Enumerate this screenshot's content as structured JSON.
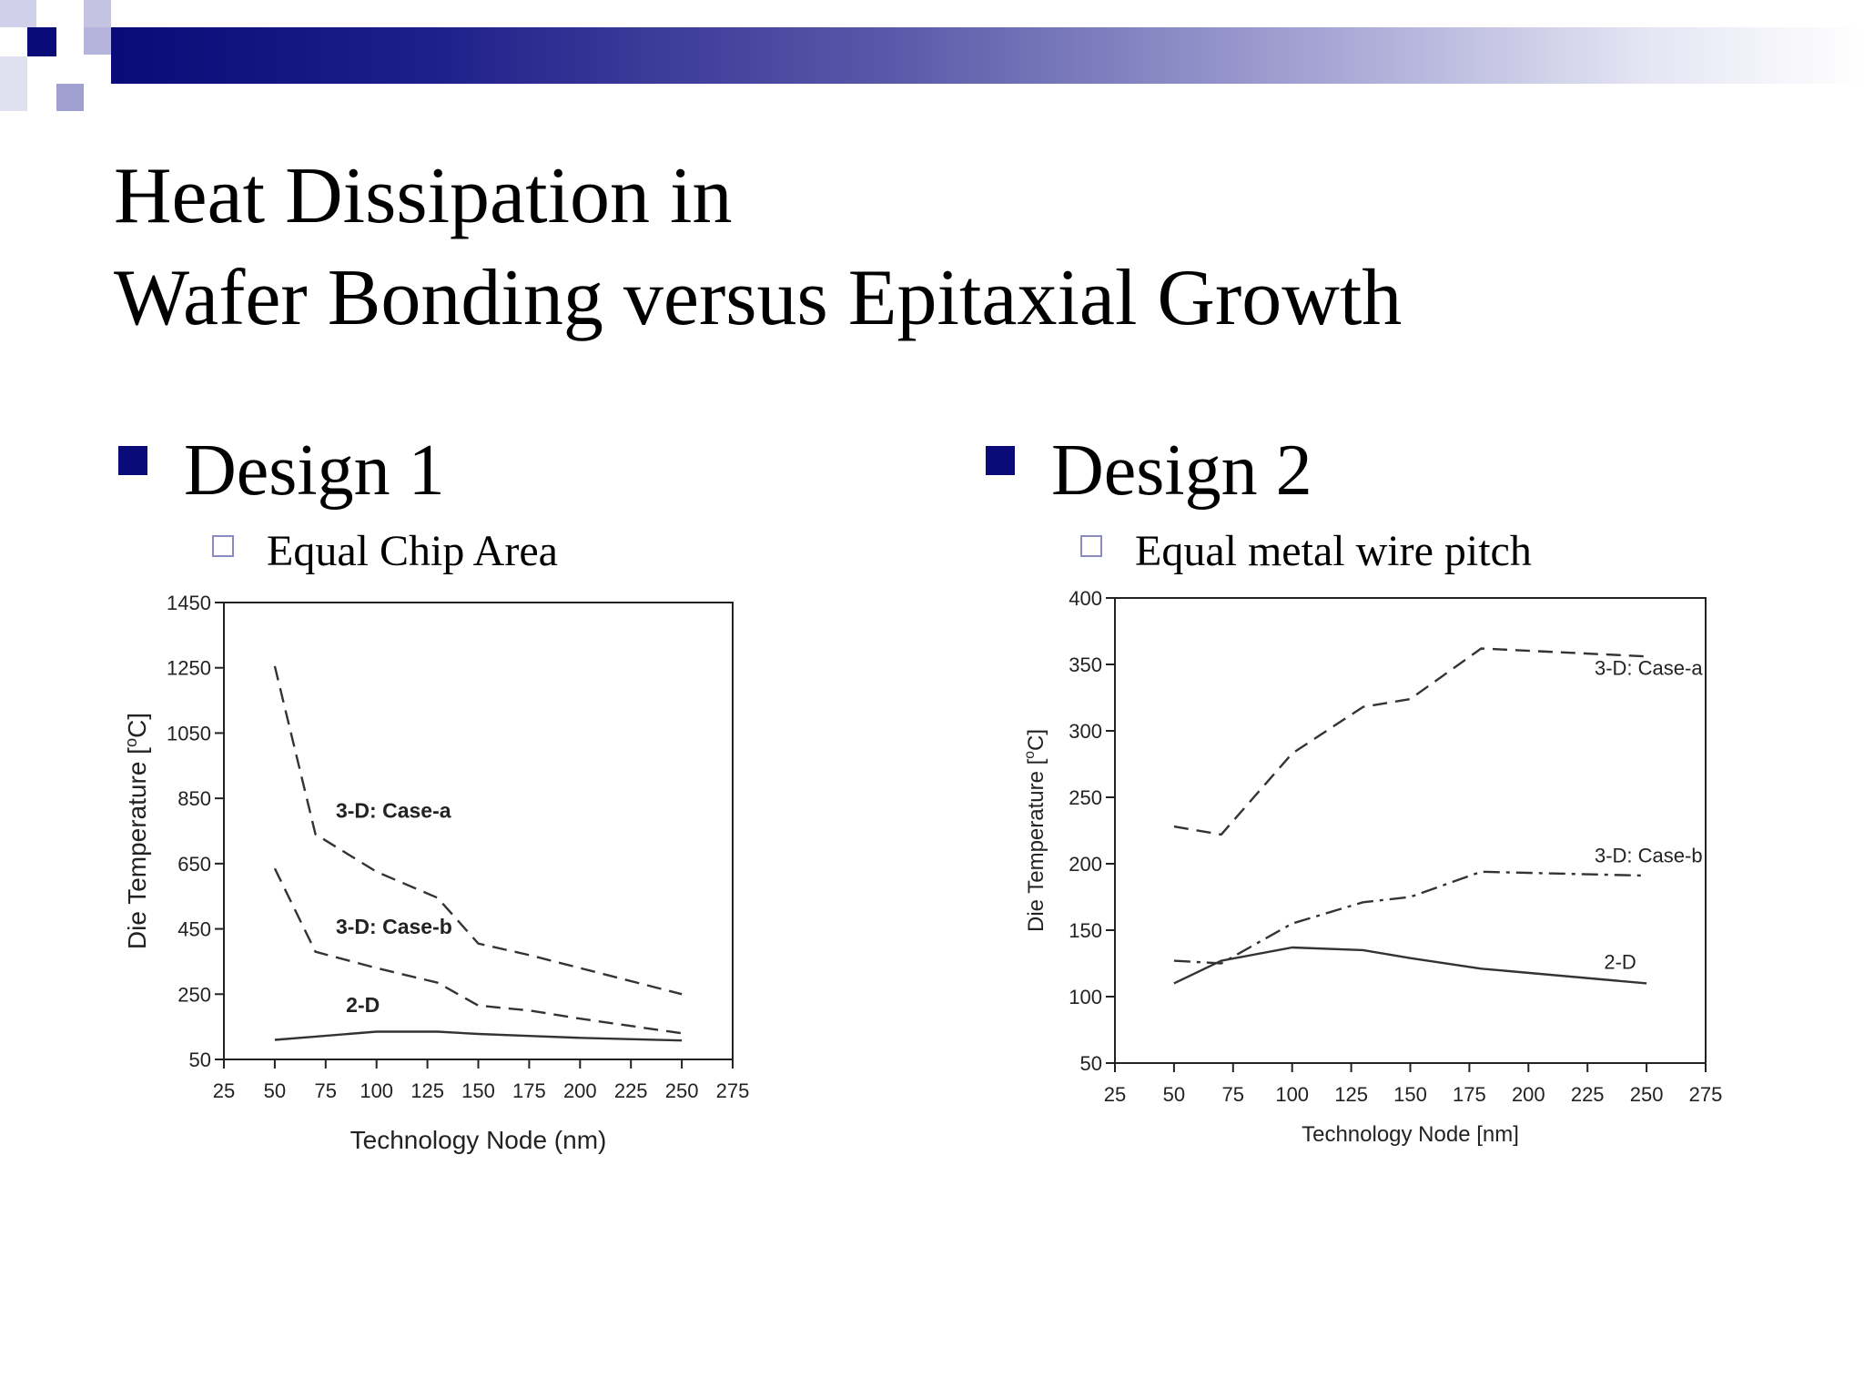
{
  "slide": {
    "title_line1": "Heat Dissipation in",
    "title_line2": "Wafer Bonding versus Epitaxial Growth",
    "accent_color": "#0a0a78"
  },
  "left": {
    "heading": "Design 1",
    "subheading": "Equal Chip Area"
  },
  "right": {
    "heading": "Design 2",
    "subheading": "Equal metal wire pitch"
  },
  "chart_data": [
    {
      "type": "line",
      "title": "",
      "xlabel": "Technology Node (nm)",
      "ylabel": "Die Temperature [°C]",
      "ylabel_base": "Die Temperature [",
      "ylabel_sup": "o",
      "ylabel_end": "C]",
      "xlim": [
        25,
        275
      ],
      "ylim": [
        50,
        1450
      ],
      "xticks": [
        25,
        50,
        75,
        100,
        125,
        150,
        175,
        200,
        225,
        250,
        275
      ],
      "yticks": [
        50,
        250,
        450,
        650,
        850,
        1050,
        1250,
        1450
      ],
      "grid": false,
      "series": [
        {
          "name": "3-D: Case-a",
          "style": "dashed",
          "x": [
            50,
            70,
            100,
            130,
            150,
            175,
            200,
            250
          ],
          "y": [
            1255,
            740,
            625,
            545,
            405,
            370,
            330,
            250
          ]
        },
        {
          "name": "3-D: Case-b",
          "style": "dashed",
          "x": [
            50,
            70,
            100,
            130,
            150,
            175,
            200,
            250
          ],
          "y": [
            635,
            380,
            330,
            285,
            215,
            200,
            175,
            130
          ]
        },
        {
          "name": "2-D",
          "style": "solid",
          "x": [
            50,
            70,
            100,
            130,
            150,
            175,
            200,
            250
          ],
          "y": [
            110,
            120,
            135,
            135,
            128,
            122,
            116,
            108
          ]
        }
      ],
      "labels": [
        {
          "text": "3-D: Case-a",
          "x": 80,
          "y": 790
        },
        {
          "text": "3-D: Case-b",
          "x": 80,
          "y": 435
        },
        {
          "text": "2-D",
          "x": 85,
          "y": 195
        }
      ]
    },
    {
      "type": "line",
      "title": "",
      "xlabel": "Technology Node [nm]",
      "ylabel": "Die Temperature [°C]",
      "ylabel_base": "Die Temperature [",
      "ylabel_sup": "o",
      "ylabel_end": "C]",
      "xlim": [
        25,
        275
      ],
      "ylim": [
        50,
        400
      ],
      "xticks": [
        25,
        50,
        75,
        100,
        125,
        150,
        175,
        200,
        225,
        250,
        275
      ],
      "yticks": [
        50,
        100,
        150,
        200,
        250,
        300,
        350,
        400
      ],
      "grid": false,
      "series": [
        {
          "name": "3-D: Case-a",
          "style": "dashed",
          "x": [
            50,
            70,
            100,
            130,
            150,
            180,
            250
          ],
          "y": [
            228,
            222,
            283,
            318,
            324,
            362,
            356
          ]
        },
        {
          "name": "3-D: Case-b",
          "style": "dashdot",
          "x": [
            50,
            70,
            100,
            130,
            150,
            180,
            250
          ],
          "y": [
            127,
            125,
            155,
            171,
            175,
            194,
            191
          ]
        },
        {
          "name": "2-D",
          "style": "solid",
          "x": [
            50,
            70,
            100,
            130,
            150,
            180,
            250
          ],
          "y": [
            110,
            127,
            137,
            135,
            129,
            121,
            110
          ]
        }
      ],
      "labels": [
        {
          "text": "3-D: Case-a",
          "x": 228,
          "y": 342
        },
        {
          "text": "3-D: Case-b",
          "x": 228,
          "y": 201
        },
        {
          "text": "2-D",
          "x": 232,
          "y": 121
        }
      ]
    }
  ]
}
